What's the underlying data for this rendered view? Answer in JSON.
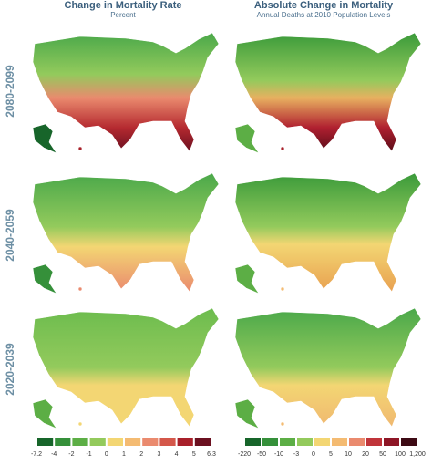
{
  "headers": {
    "left": {
      "title": "Change in Mortality Rate",
      "subtitle": "Percent"
    },
    "right": {
      "title": "Absolute Change in Mortality",
      "subtitle": "Annual Deaths at 2010 Population Levels"
    }
  },
  "rows": [
    "2080-2099",
    "2040-2059",
    "2020-2039"
  ],
  "legends": {
    "left": {
      "labels": [
        "-7.2",
        "-4",
        "-2",
        "-1",
        "0",
        "1",
        "2",
        "3",
        "4",
        "5",
        "6.3"
      ],
      "colors": [
        "#17652a",
        "#35903a",
        "#5cae45",
        "#93ca5c",
        "#f3d673",
        "#f4bb72",
        "#ea8a6e",
        "#d4574a",
        "#a8202a",
        "#6b1020"
      ]
    },
    "right": {
      "labels": [
        "-220",
        "-50",
        "-10",
        "-3",
        "0",
        "5",
        "10",
        "20",
        "50",
        "100",
        "1,200"
      ],
      "colors": [
        "#17652a",
        "#35903a",
        "#5cae45",
        "#93ca5c",
        "#f3d673",
        "#f4bb72",
        "#ea8a6e",
        "#c0343a",
        "#8e1626",
        "#3d0a14"
      ]
    }
  }
}
